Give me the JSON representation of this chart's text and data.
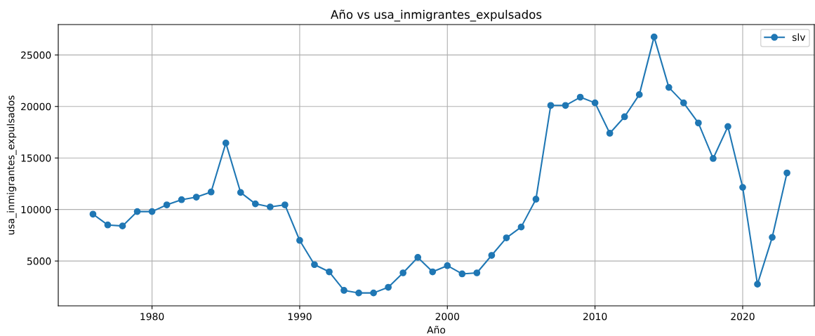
{
  "chart_data": {
    "type": "line",
    "title": "Año vs usa_inmigrantes_expulsados",
    "xlabel": "Año",
    "ylabel": "usa_inmigrantes_expulsados",
    "x": [
      1976,
      1977,
      1978,
      1979,
      1980,
      1981,
      1982,
      1983,
      1984,
      1985,
      1986,
      1987,
      1988,
      1989,
      1990,
      1991,
      1992,
      1993,
      1994,
      1995,
      1996,
      1997,
      1998,
      1999,
      2000,
      2001,
      2002,
      2003,
      2004,
      2005,
      2006,
      2007,
      2008,
      2009,
      2010,
      2011,
      2012,
      2013,
      2014,
      2015,
      2016,
      2017,
      2018,
      2019,
      2020,
      2021,
      2022,
      2023
    ],
    "series": [
      {
        "name": "slv",
        "color": "#1f77b4",
        "values": [
          9550,
          8500,
          8400,
          9800,
          9800,
          10450,
          10950,
          11200,
          11700,
          16450,
          11650,
          10550,
          10250,
          10450,
          7000,
          4650,
          3950,
          2150,
          1900,
          1900,
          2450,
          3850,
          5350,
          3950,
          4550,
          3750,
          3850,
          5550,
          7250,
          8300,
          11000,
          20100,
          20100,
          20900,
          20350,
          17400,
          19000,
          21150,
          26750,
          21850,
          20350,
          18400,
          14950,
          18050,
          12150,
          2750,
          7300,
          13550
        ]
      }
    ],
    "xlim": [
      1973.65,
      2024.85
    ],
    "ylim": [
      650,
      27950
    ],
    "xticks": [
      1980,
      1990,
      2000,
      2010,
      2020
    ],
    "yticks": [
      5000,
      10000,
      15000,
      20000,
      25000
    ],
    "grid": true,
    "legend": "top right",
    "marker": "circle",
    "line_style": "solid"
  }
}
